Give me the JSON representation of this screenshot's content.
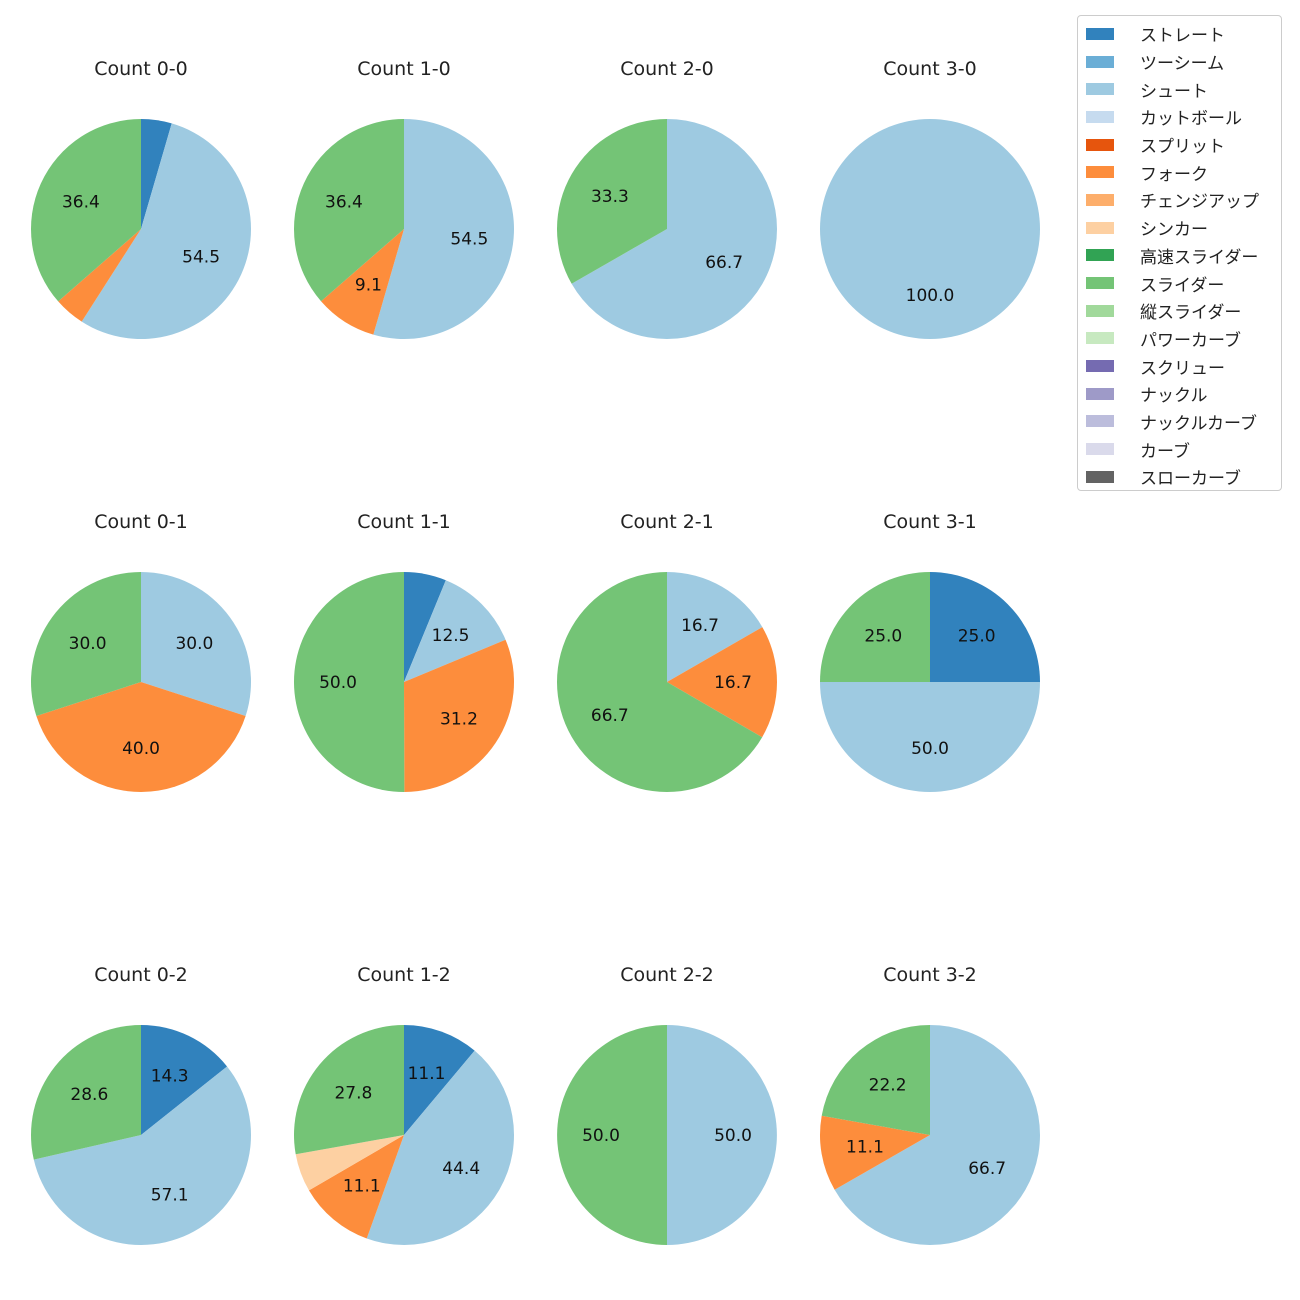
{
  "chart_data": {
    "type": "pie",
    "start_angle": 90,
    "direction": "clockwise",
    "legend_placement": "top-right",
    "legend": [
      {
        "name": "ストレート",
        "color": "#3182bd"
      },
      {
        "name": "ツーシーム",
        "color": "#6baed6"
      },
      {
        "name": "シュート",
        "color": "#9ecae1"
      },
      {
        "name": "カットボール",
        "color": "#c6dbef"
      },
      {
        "name": "スプリット",
        "color": "#e6550d"
      },
      {
        "name": "フォーク",
        "color": "#fd8d3c"
      },
      {
        "name": "チェンジアップ",
        "color": "#fdae6b"
      },
      {
        "name": "シンカー",
        "color": "#fdd0a2"
      },
      {
        "name": "高速スライダー",
        "color": "#31a354"
      },
      {
        "name": "スライダー",
        "color": "#74c476"
      },
      {
        "name": "縦スライダー",
        "color": "#a1d99b"
      },
      {
        "name": "パワーカーブ",
        "color": "#c7e9c0"
      },
      {
        "name": "スクリュー",
        "color": "#756bb1"
      },
      {
        "name": "ナックル",
        "color": "#9e9ac8"
      },
      {
        "name": "ナックルカーブ",
        "color": "#bcbddc"
      },
      {
        "name": "カーブ",
        "color": "#dadaeb"
      },
      {
        "name": "スローカーブ",
        "color": "#636363"
      }
    ],
    "pies": [
      {
        "title": "Count 0-0",
        "slices": [
          {
            "pitch": "ストレート",
            "value": 4.5
          },
          {
            "pitch": "シュート",
            "value": 54.5
          },
          {
            "pitch": "フォーク",
            "value": 4.5
          },
          {
            "pitch": "スライダー",
            "value": 36.4
          }
        ]
      },
      {
        "title": "Count 1-0",
        "slices": [
          {
            "pitch": "シュート",
            "value": 54.5
          },
          {
            "pitch": "フォーク",
            "value": 9.1
          },
          {
            "pitch": "スライダー",
            "value": 36.4
          }
        ]
      },
      {
        "title": "Count 2-0",
        "slices": [
          {
            "pitch": "シュート",
            "value": 66.7
          },
          {
            "pitch": "スライダー",
            "value": 33.3
          }
        ]
      },
      {
        "title": "Count 3-0",
        "slices": [
          {
            "pitch": "シュート",
            "value": 100.0
          }
        ]
      },
      {
        "title": "Count 0-1",
        "slices": [
          {
            "pitch": "シュート",
            "value": 30.0
          },
          {
            "pitch": "フォーク",
            "value": 40.0
          },
          {
            "pitch": "スライダー",
            "value": 30.0
          }
        ]
      },
      {
        "title": "Count 1-1",
        "slices": [
          {
            "pitch": "ストレート",
            "value": 6.2
          },
          {
            "pitch": "シュート",
            "value": 12.5
          },
          {
            "pitch": "フォーク",
            "value": 31.2
          },
          {
            "pitch": "スライダー",
            "value": 50.0
          }
        ]
      },
      {
        "title": "Count 2-1",
        "slices": [
          {
            "pitch": "シュート",
            "value": 16.7
          },
          {
            "pitch": "フォーク",
            "value": 16.7
          },
          {
            "pitch": "スライダー",
            "value": 66.7
          }
        ]
      },
      {
        "title": "Count 3-1",
        "slices": [
          {
            "pitch": "ストレート",
            "value": 25.0
          },
          {
            "pitch": "シュート",
            "value": 50.0
          },
          {
            "pitch": "スライダー",
            "value": 25.0
          }
        ]
      },
      {
        "title": "Count 0-2",
        "slices": [
          {
            "pitch": "ストレート",
            "value": 14.3
          },
          {
            "pitch": "シュート",
            "value": 57.1
          },
          {
            "pitch": "スライダー",
            "value": 28.6
          }
        ]
      },
      {
        "title": "Count 1-2",
        "slices": [
          {
            "pitch": "ストレート",
            "value": 11.1
          },
          {
            "pitch": "シュート",
            "value": 44.4
          },
          {
            "pitch": "フォーク",
            "value": 11.1
          },
          {
            "pitch": "シンカー",
            "value": 5.6
          },
          {
            "pitch": "スライダー",
            "value": 27.8
          }
        ]
      },
      {
        "title": "Count 2-2",
        "slices": [
          {
            "pitch": "シュート",
            "value": 50.0
          },
          {
            "pitch": "スライダー",
            "value": 50.0
          }
        ]
      },
      {
        "title": "Count 3-2",
        "slices": [
          {
            "pitch": "シュート",
            "value": 66.7
          },
          {
            "pitch": "フォーク",
            "value": 11.1
          },
          {
            "pitch": "スライダー",
            "value": 22.2
          }
        ]
      }
    ]
  }
}
